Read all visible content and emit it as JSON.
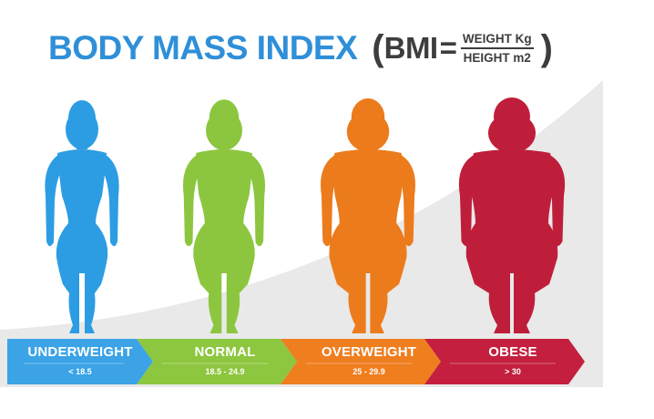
{
  "title": {
    "main": "BODY MASS INDEX",
    "formula_open": "(",
    "formula_bmi": "BMI",
    "formula_eq": "=",
    "numerator": "WEIGHT Kg",
    "denominator": "HEIGHT m2",
    "formula_close": ")"
  },
  "categories": [
    {
      "label": "UNDERWEIGHT",
      "range": "< 18.5",
      "color": "#2d9de3",
      "arrow_color": "#3ba3e6",
      "figure": "slim"
    },
    {
      "label": "NORMAL",
      "range": "18.5 - 24.9",
      "color": "#8cc63f",
      "arrow_color": "#8dc63f",
      "figure": "normal"
    },
    {
      "label": "OVERWEIGHT",
      "range": "25 - 29.9",
      "color": "#ec7b1c",
      "arrow_color": "#ef7e1f",
      "figure": "heavy"
    },
    {
      "label": "OBESE",
      "range": "> 30",
      "color": "#bf1e3b",
      "arrow_color": "#c41f3e",
      "figure": "obese"
    }
  ],
  "colors": {
    "title_blue": "#2f8fd8",
    "formula_gray": "#3d3d3d",
    "background_curve": "#e9e9e9"
  }
}
